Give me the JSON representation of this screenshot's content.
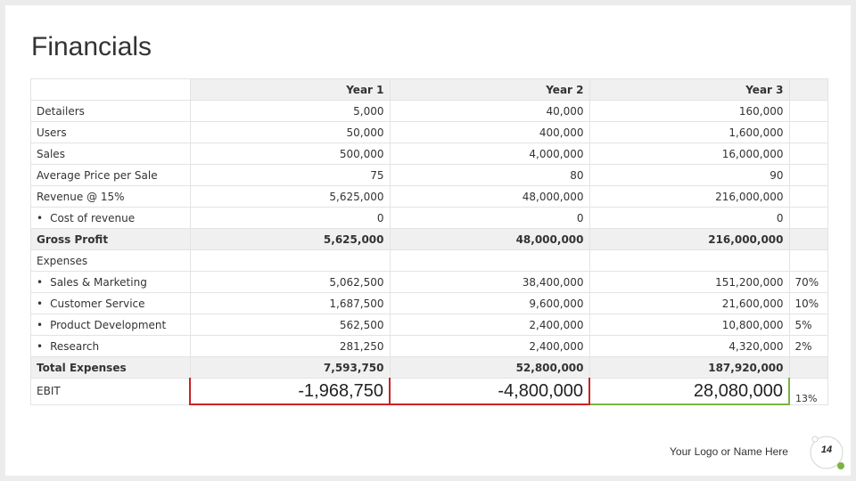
{
  "slide": {
    "title": "Financials",
    "logo_text": "Your Logo or Name Here",
    "page_number": "14"
  },
  "table": {
    "header": [
      "",
      "Year 1",
      "Year 2",
      "Year 3",
      ""
    ],
    "rows": [
      {
        "label": "Detailers",
        "bullet": false,
        "y1": "5,000",
        "y2": "40,000",
        "y3": "160,000",
        "pct": ""
      },
      {
        "label": "Users",
        "bullet": false,
        "y1": "50,000",
        "y2": "400,000",
        "y3": "1,600,000",
        "pct": ""
      },
      {
        "label": "Sales",
        "bullet": false,
        "y1": "500,000",
        "y2": "4,000,000",
        "y3": "16,000,000",
        "pct": ""
      },
      {
        "label": "Average Price per Sale",
        "bullet": false,
        "y1": "75",
        "y2": "80",
        "y3": "90",
        "pct": ""
      },
      {
        "label": "Revenue @ 15%",
        "bullet": false,
        "y1": "5,625,000",
        "y2": "48,000,000",
        "y3": "216,000,000",
        "pct": ""
      },
      {
        "label": "Cost of revenue",
        "bullet": true,
        "y1": "0",
        "y2": "0",
        "y3": "0",
        "pct": ""
      },
      {
        "label": "Gross Profit",
        "bullet": false,
        "y1": "5,625,000",
        "y2": "48,000,000",
        "y3": "216,000,000",
        "pct": ""
      },
      {
        "label": "Expenses",
        "bullet": false,
        "y1": "",
        "y2": "",
        "y3": "",
        "pct": ""
      },
      {
        "label": "Sales & Marketing",
        "bullet": true,
        "y1": "5,062,500",
        "y2": "38,400,000",
        "y3": "151,200,000",
        "pct": "70%"
      },
      {
        "label": "Customer Service",
        "bullet": true,
        "y1": "1,687,500",
        "y2": "9,600,000",
        "y3": "21,600,000",
        "pct": "10%"
      },
      {
        "label": "Product Development",
        "bullet": true,
        "y1": "562,500",
        "y2": "2,400,000",
        "y3": "10,800,000",
        "pct": "5%"
      },
      {
        "label": "Research",
        "bullet": true,
        "y1": "281,250",
        "y2": "2,400,000",
        "y3": "4,320,000",
        "pct": "2%"
      },
      {
        "label": "Total Expenses",
        "bullet": false,
        "y1": "7,593,750",
        "y2": "52,800,000",
        "y3": "187,920,000",
        "pct": ""
      },
      {
        "label": "EBIT",
        "bullet": false,
        "y1": "-1,968,750",
        "y2": "-4,800,000",
        "y3": "28,080,000",
        "pct": "13%"
      }
    ]
  },
  "colors": {
    "negative_outline": "#cc2222",
    "positive_outline": "#7cb342",
    "accent_green": "#7cb342"
  }
}
